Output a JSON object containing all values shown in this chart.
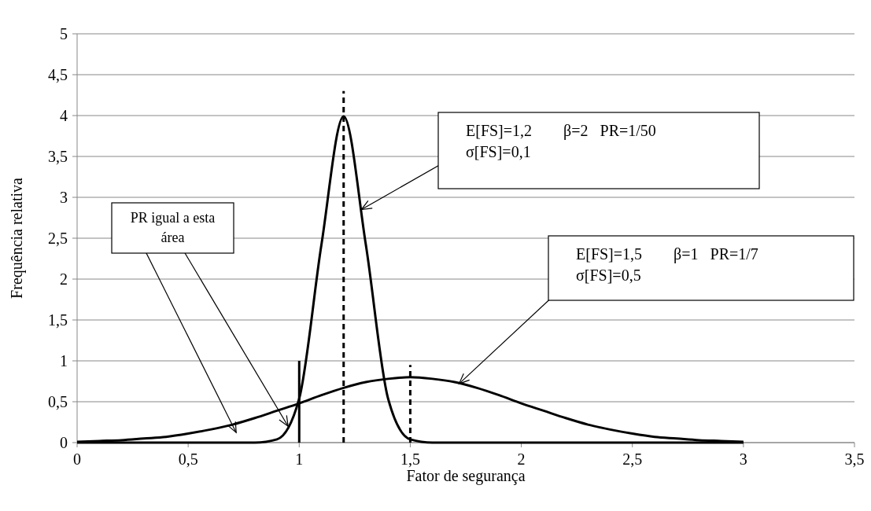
{
  "chart_data": {
    "type": "line",
    "xlabel": "Fator de segurança",
    "ylabel": "Frequência relativa",
    "xlim": [
      0,
      3.5
    ],
    "ylim": [
      0,
      5
    ],
    "xticks": [
      0,
      {
        "value": 0.5,
        "label": "0,5"
      },
      1,
      {
        "value": 1.5,
        "label": "1,5"
      },
      2,
      {
        "value": 2.5,
        "label": "2,5"
      },
      3,
      {
        "value": 3.5,
        "label": "3,5"
      }
    ],
    "yticks": [
      0,
      {
        "value": 0.5,
        "label": "0,5"
      },
      1,
      {
        "value": 1.5,
        "label": "1,5"
      },
      2,
      {
        "value": 2.5,
        "label": "2,5"
      },
      3,
      {
        "value": 3.5,
        "label": "3,5"
      },
      4,
      {
        "value": 4.5,
        "label": "4,5"
      },
      5
    ],
    "grid": "y",
    "marker": "none",
    "series": [
      {
        "color": "#000000",
        "x": [
          0,
          0.1,
          0.2,
          0.3,
          0.4,
          0.5,
          0.6,
          0.7,
          0.8,
          0.9,
          1.0,
          1.1,
          1.2,
          1.3,
          1.4,
          1.5,
          1.6,
          1.7,
          1.8,
          1.9,
          2.0,
          2.1,
          2.2,
          2.3,
          2.4,
          2.5,
          2.6,
          2.7,
          2.8,
          2.9,
          3.0
        ],
        "values": [
          0,
          0,
          0,
          0,
          0,
          0,
          0,
          0,
          0,
          0.04,
          0.54,
          2.42,
          3.99,
          2.42,
          0.54,
          0.04,
          0,
          0,
          0,
          0,
          0,
          0,
          0,
          0,
          0,
          0,
          0,
          0,
          0,
          0,
          0
        ]
      },
      {
        "color": "#000000",
        "x": [
          0,
          0.1,
          0.2,
          0.3,
          0.4,
          0.5,
          0.6,
          0.7,
          0.8,
          0.9,
          1.0,
          1.1,
          1.2,
          1.3,
          1.4,
          1.5,
          1.6,
          1.7,
          1.8,
          1.9,
          2.0,
          2.1,
          2.2,
          2.3,
          2.4,
          2.5,
          2.6,
          2.7,
          2.8,
          2.9,
          3.0
        ],
        "values": [
          0.01,
          0.02,
          0.03,
          0.05,
          0.07,
          0.11,
          0.16,
          0.22,
          0.3,
          0.39,
          0.48,
          0.58,
          0.67,
          0.74,
          0.78,
          0.8,
          0.78,
          0.74,
          0.67,
          0.58,
          0.48,
          0.39,
          0.3,
          0.22,
          0.16,
          0.11,
          0.07,
          0.05,
          0.03,
          0.02,
          0.01
        ]
      },
      {
        "color": "#000000",
        "line_style": "dashed",
        "x": [
          1.2,
          1.2
        ],
        "values": [
          0,
          4.3
        ]
      },
      {
        "color": "#000000",
        "line_style": "dashed",
        "x": [
          1.5,
          1.5
        ],
        "values": [
          0,
          0.95
        ]
      },
      {
        "color": "#000000",
        "line_style": "solid",
        "x": [
          1,
          1
        ],
        "values": [
          0,
          1
        ]
      }
    ],
    "annotations": [
      {
        "text": "E[FS]=1,2        β=2   PR=1/50\nσ[FS]=0,1",
        "x": 1.28,
        "y": 2.85
      },
      {
        "text": "E[FS]=1,5        β=1   PR=1/7\nσ[FS]=0,5",
        "x": 1.72,
        "y": 0.72
      },
      {
        "text": "PR igual a esta\nárea",
        "x": 0.95,
        "y": 0.2
      }
    ]
  }
}
